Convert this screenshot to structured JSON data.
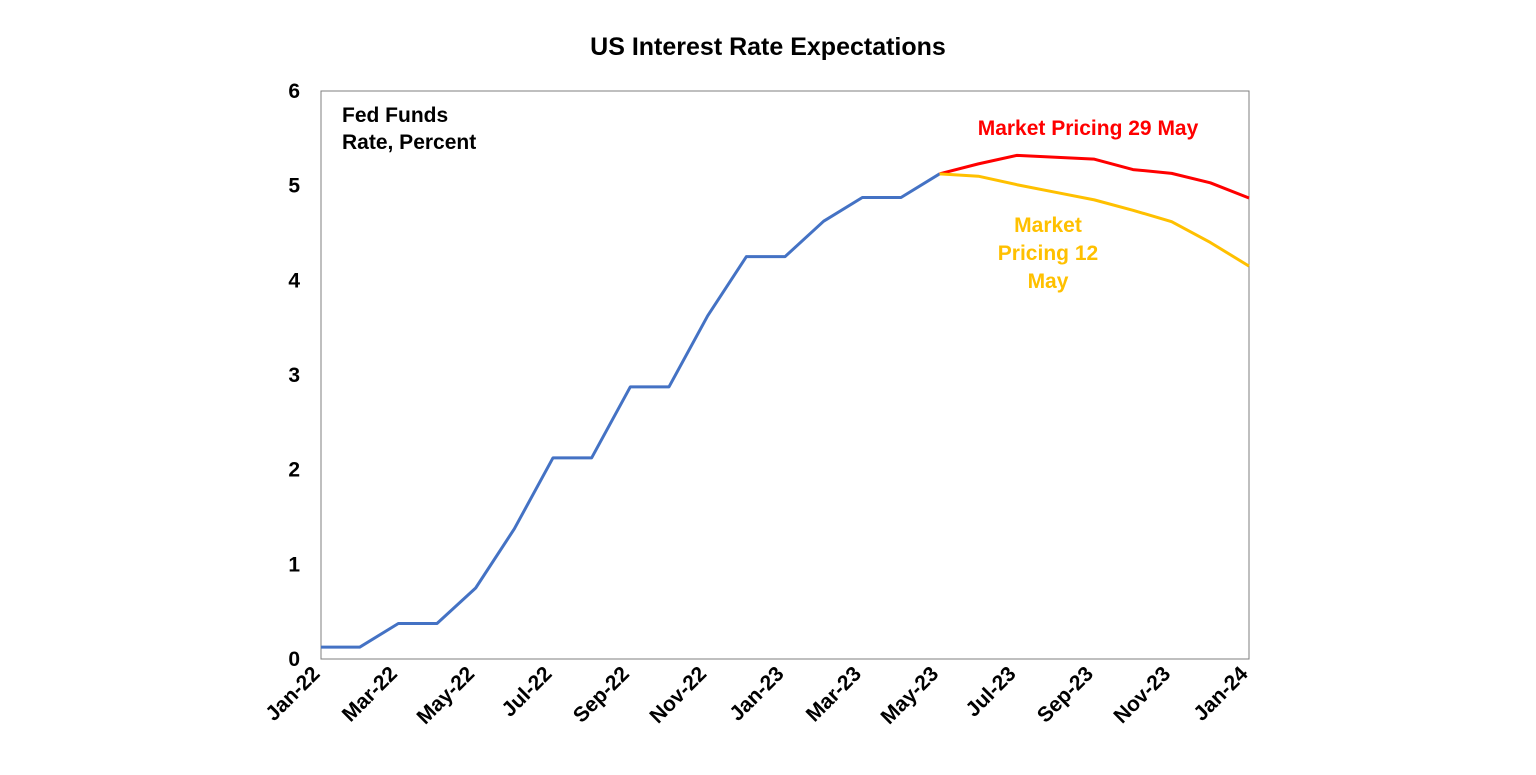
{
  "chart_data": {
    "type": "line",
    "title": "US Interest Rate Expectations",
    "ylabel_annotation": [
      "Fed Funds",
      "Rate, Percent"
    ],
    "ylim": [
      0,
      6
    ],
    "yticks": [
      0,
      1,
      2,
      3,
      4,
      5,
      6
    ],
    "x_range": [
      0,
      24
    ],
    "xticks": [
      {
        "i": 0,
        "label": "Jan-22"
      },
      {
        "i": 2,
        "label": "Mar-22"
      },
      {
        "i": 4,
        "label": "May-22"
      },
      {
        "i": 6,
        "label": "Jul-22"
      },
      {
        "i": 8,
        "label": "Sep-22"
      },
      {
        "i": 10,
        "label": "Nov-22"
      },
      {
        "i": 12,
        "label": "Jan-23"
      },
      {
        "i": 14,
        "label": "Mar-23"
      },
      {
        "i": 16,
        "label": "May-23"
      },
      {
        "i": 18,
        "label": "Jul-23"
      },
      {
        "i": 20,
        "label": "Sep-23"
      },
      {
        "i": 22,
        "label": "Nov-23"
      },
      {
        "i": 24,
        "label": "Jan-24"
      }
    ],
    "grid": false,
    "series": [
      {
        "name": "Fed Funds Rate",
        "color": "#4472C4",
        "x": [
          0,
          1,
          2,
          3,
          4,
          5,
          6,
          7,
          8,
          9,
          10,
          11,
          12,
          13,
          14,
          15,
          16
        ],
        "values": [
          0.125,
          0.125,
          0.375,
          0.375,
          0.75,
          1.375,
          2.125,
          2.125,
          2.875,
          2.875,
          3.625,
          4.25,
          4.25,
          4.625,
          4.875,
          4.875,
          5.125
        ]
      },
      {
        "name": "Market Pricing 29 May",
        "color": "#FF0000",
        "x": [
          16,
          17,
          18,
          19,
          20,
          21,
          22,
          23,
          24
        ],
        "values": [
          5.125,
          5.23,
          5.32,
          5.3,
          5.28,
          5.17,
          5.13,
          5.03,
          4.87
        ]
      },
      {
        "name": "Market Pricing 12 May",
        "color": "#FFC000",
        "x": [
          16,
          17,
          18,
          19,
          20,
          21,
          22,
          23,
          24
        ],
        "values": [
          5.125,
          5.1,
          5.01,
          4.93,
          4.85,
          4.74,
          4.62,
          4.4,
          4.15
        ]
      }
    ],
    "annotations": {
      "red_label": "Market Pricing 29 May",
      "yellow_label": [
        "Market",
        "Pricing 12",
        "May"
      ]
    }
  }
}
